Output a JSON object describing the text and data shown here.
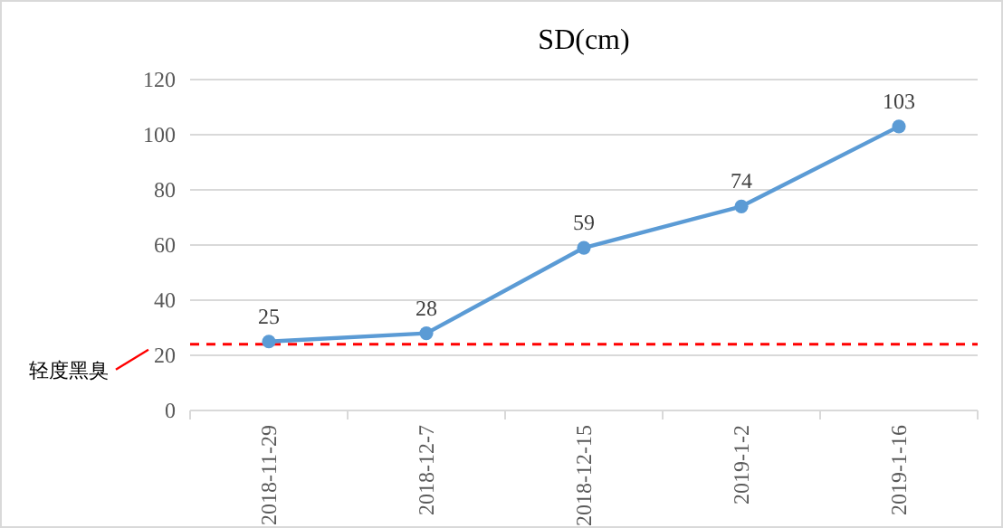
{
  "chart_data": {
    "type": "line",
    "title": "SD(cm)",
    "categories": [
      "2018-11-29",
      "2018-12-7",
      "2018-12-15",
      "2019-1-2",
      "2019-1-16"
    ],
    "series": [
      {
        "color": "#5b9bd5",
        "values": [
          25,
          28,
          59,
          74,
          103
        ]
      }
    ],
    "ylim": [
      0,
      120
    ],
    "yticks": [
      0,
      20,
      40,
      60,
      80,
      100,
      120
    ],
    "grid": "y",
    "marker": "circle",
    "data_labels": true,
    "ref_lines": [
      {
        "axis": "y",
        "value": 24,
        "label": "轻度黑臭",
        "color": "#ff0000",
        "line_style": "dashed"
      }
    ]
  }
}
